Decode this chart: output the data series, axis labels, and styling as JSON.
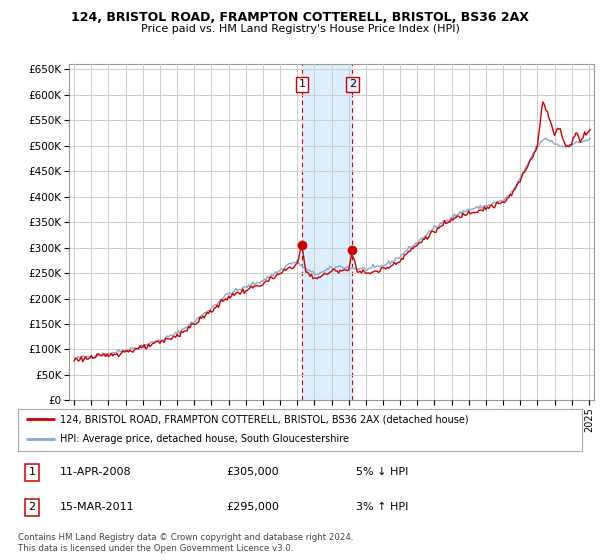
{
  "title1": "124, BRISTOL ROAD, FRAMPTON COTTERELL, BRISTOL, BS36 2AX",
  "title2": "Price paid vs. HM Land Registry's House Price Index (HPI)",
  "legend_line1": "124, BRISTOL ROAD, FRAMPTON COTTERELL, BRISTOL, BS36 2AX (detached house)",
  "legend_line2": "HPI: Average price, detached house, South Gloucestershire",
  "sale1_date": "11-APR-2008",
  "sale1_price": "£305,000",
  "sale1_hpi": "5% ↓ HPI",
  "sale2_date": "15-MAR-2011",
  "sale2_price": "£295,000",
  "sale2_hpi": "3% ↑ HPI",
  "footer": "Contains HM Land Registry data © Crown copyright and database right 2024.\nThis data is licensed under the Open Government Licence v3.0.",
  "line_color_red": "#cc0000",
  "line_color_blue": "#88aacc",
  "shade_color": "#ddeeff",
  "grid_color": "#cccccc",
  "sale1_year": 2008.28,
  "sale2_year": 2011.21,
  "xlim_left": 1994.7,
  "xlim_right": 2025.3,
  "ylim_top": 650000,
  "ytick_max": 650000,
  "ytick_step": 50000
}
